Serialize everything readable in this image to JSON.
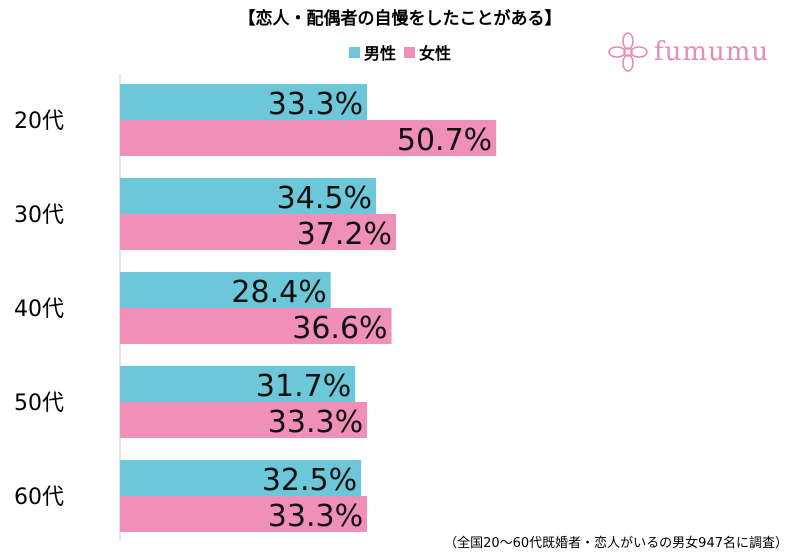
{
  "title": "【恋人・配偶者の自慢をしたことがある】",
  "logo": {
    "text": "fumumu",
    "icon": "flower-icon"
  },
  "note": "（全国20〜60代既婚者・恋人がいるの男女947名に調査）",
  "colors": {
    "male": "#6cc8d8",
    "female": "#f090b8",
    "axis": "#cccccc"
  },
  "chart_data": {
    "type": "bar",
    "orientation": "horizontal",
    "categories": [
      "20代",
      "30代",
      "40代",
      "50代",
      "60代"
    ],
    "series": [
      {
        "name": "男性",
        "values": [
          33.3,
          34.5,
          28.4,
          31.7,
          32.5
        ]
      },
      {
        "name": "女性",
        "values": [
          50.7,
          37.2,
          36.6,
          33.3,
          33.3
        ]
      }
    ],
    "value_suffix": "%",
    "xlim": [
      0,
      100
    ],
    "legend": "top-center",
    "grid": false
  }
}
